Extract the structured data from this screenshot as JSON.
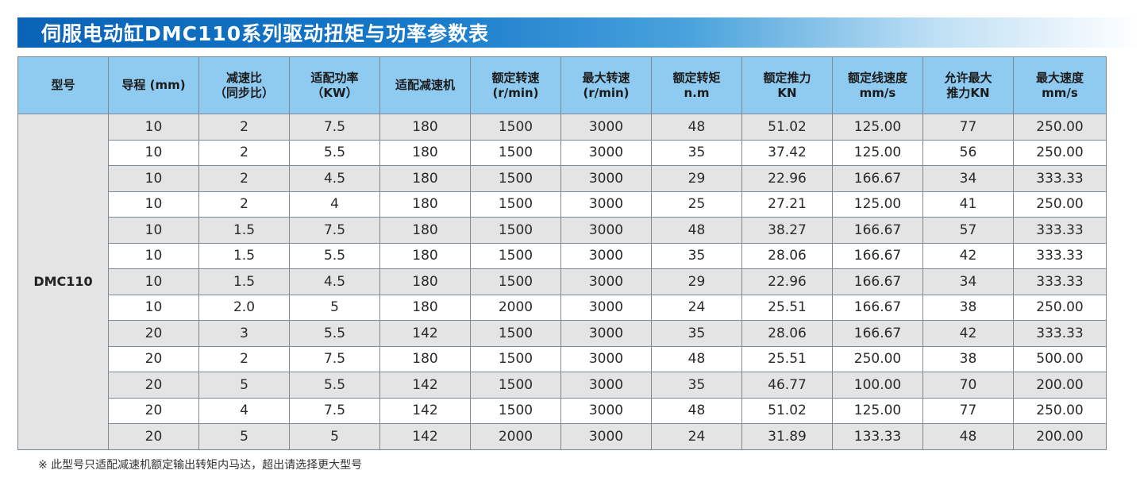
{
  "title": "伺服电动缸DMC110系列驱动扭矩与功率参数表",
  "model": "DMC110",
  "headers": [
    [
      "型号"
    ],
    [
      "导程 (mm)"
    ],
    [
      "减速比",
      "（同步比）"
    ],
    [
      "适配功率",
      "（KW）"
    ],
    [
      "适配减速机"
    ],
    [
      "额定转速",
      "(r/min)"
    ],
    [
      "最大转速",
      "(r/min)"
    ],
    [
      "额定转矩",
      "n.m"
    ],
    [
      "额定推力",
      "KN"
    ],
    [
      "额定线速度",
      "mm/s"
    ],
    [
      "允许最大",
      "推力KN"
    ],
    [
      "最大速度",
      "mm/s"
    ]
  ],
  "rows": [
    [
      "10",
      "2",
      "7.5",
      "180",
      "1500",
      "3000",
      "48",
      "51.02",
      "125.00",
      "77",
      "250.00"
    ],
    [
      "10",
      "2",
      "5.5",
      "180",
      "1500",
      "3000",
      "35",
      "37.42",
      "125.00",
      "56",
      "250.00"
    ],
    [
      "10",
      "2",
      "4.5",
      "180",
      "1500",
      "3000",
      "29",
      "22.96",
      "166.67",
      "34",
      "333.33"
    ],
    [
      "10",
      "2",
      "4",
      "180",
      "1500",
      "3000",
      "25",
      "27.21",
      "125.00",
      "41",
      "250.00"
    ],
    [
      "10",
      "1.5",
      "7.5",
      "180",
      "1500",
      "3000",
      "48",
      "38.27",
      "166.67",
      "57",
      "333.33"
    ],
    [
      "10",
      "1.5",
      "5.5",
      "180",
      "1500",
      "3000",
      "35",
      "28.06",
      "166.67",
      "42",
      "333.33"
    ],
    [
      "10",
      "1.5",
      "4.5",
      "180",
      "1500",
      "3000",
      "29",
      "22.96",
      "166.67",
      "34",
      "333.33"
    ],
    [
      "10",
      "2.0",
      "5",
      "180",
      "2000",
      "3000",
      "24",
      "25.51",
      "166.67",
      "38",
      "250.00"
    ],
    [
      "20",
      "3",
      "5.5",
      "142",
      "1500",
      "3000",
      "35",
      "28.06",
      "166.67",
      "42",
      "333.33"
    ],
    [
      "20",
      "2",
      "7.5",
      "180",
      "1500",
      "3000",
      "48",
      "25.51",
      "250.00",
      "38",
      "500.00"
    ],
    [
      "20",
      "5",
      "5.5",
      "142",
      "1500",
      "3000",
      "35",
      "46.77",
      "100.00",
      "70",
      "200.00"
    ],
    [
      "20",
      "4",
      "7.5",
      "142",
      "1500",
      "3000",
      "48",
      "51.02",
      "125.00",
      "77",
      "250.00"
    ],
    [
      "20",
      "5",
      "5",
      "142",
      "2000",
      "3000",
      "24",
      "31.89",
      "133.33",
      "48",
      "200.00"
    ]
  ],
  "footnote": "※ 此型号只适配减速机额定输出转矩内马达，超出请选择更大型号",
  "colors": {
    "title_bar": "#1578c8",
    "header_bg": "#8fcaf0",
    "row_shade": "#e4e4e4",
    "border": "#7d8a96"
  }
}
